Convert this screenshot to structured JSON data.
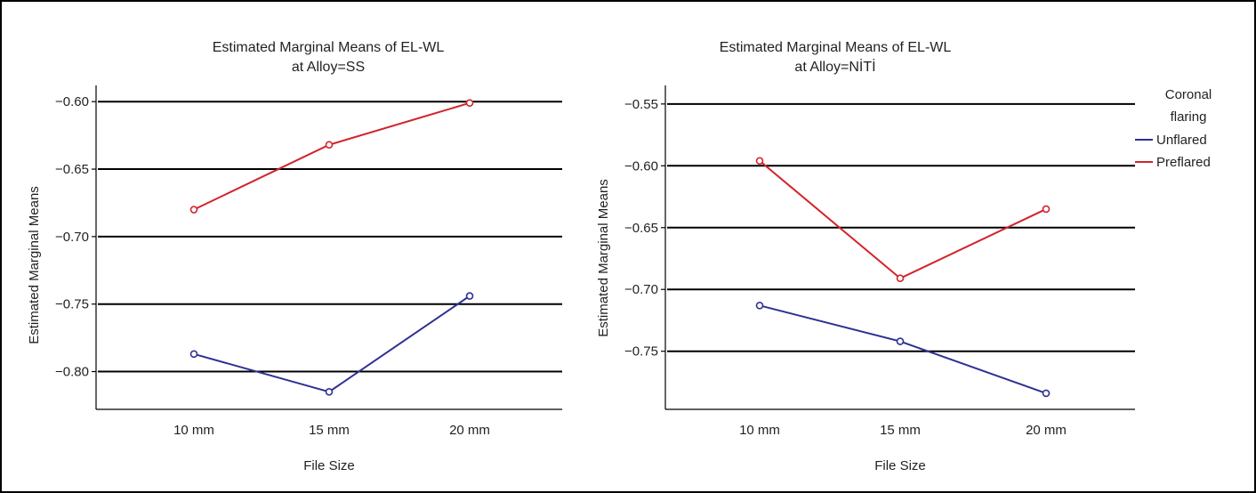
{
  "chart_data": [
    {
      "type": "line",
      "title": [
        "Estimated Marginal Means of EL-WL",
        "at Alloy=SS"
      ],
      "xlabel": "File Size",
      "ylabel": "Estimated Marginal Means",
      "categories": [
        "10 mm",
        "15 mm",
        "20 mm"
      ],
      "yticks": [
        -0.6,
        -0.65,
        -0.7,
        -0.75,
        -0.8
      ],
      "ytick_labels": [
        "−0.60",
        "−0.65",
        "−0.70",
        "−0.75",
        "−0.80"
      ],
      "ylim": [
        -0.828,
        -0.588
      ],
      "grid": true,
      "series": [
        {
          "name": "Unflared",
          "color": "#2e3192",
          "values": [
            -0.787,
            -0.815,
            -0.744
          ]
        },
        {
          "name": "Preflared",
          "color": "#d2232a",
          "values": [
            -0.68,
            -0.632,
            -0.601
          ]
        }
      ]
    },
    {
      "type": "line",
      "title": [
        "Estimated Marginal Means of EL-WL",
        "at Alloy=NİTİ"
      ],
      "xlabel": "File Size",
      "ylabel": "Estimated Marginal Means",
      "categories": [
        "10 mm",
        "15 mm",
        "20 mm"
      ],
      "yticks": [
        -0.55,
        -0.6,
        -0.65,
        -0.7,
        -0.75
      ],
      "ytick_labels": [
        "−0.55",
        "−0.60",
        "−0.65",
        "−0.70",
        "−0.75"
      ],
      "ylim": [
        -0.797,
        -0.535
      ],
      "grid": true,
      "legend": {
        "title": [
          "Coronal",
          "flaring"
        ],
        "position": "right",
        "entries": [
          "Unflared",
          "Preflared"
        ]
      },
      "series": [
        {
          "name": "Unflared",
          "color": "#2e3192",
          "values": [
            -0.713,
            -0.742,
            -0.784
          ]
        },
        {
          "name": "Preflared",
          "color": "#d2232a",
          "values": [
            -0.596,
            -0.691,
            -0.635
          ]
        }
      ]
    }
  ]
}
